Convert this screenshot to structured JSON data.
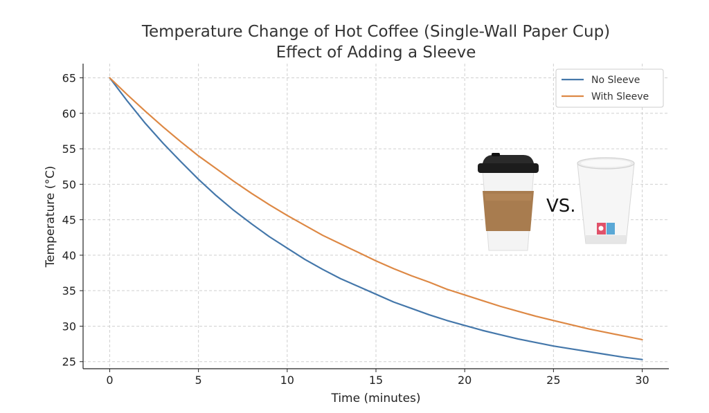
{
  "chart_data": {
    "type": "line",
    "title": "Temperature Change of Hot Coffee (Single-Wall Paper Cup)",
    "subtitle": "Effect of Adding a Sleeve",
    "xlabel": "Time (minutes)",
    "ylabel": "Temperature (°C)",
    "xlim": [
      -1.5,
      31.5
    ],
    "ylim": [
      24,
      67
    ],
    "xticks": [
      0,
      5,
      10,
      15,
      20,
      25,
      30
    ],
    "yticks": [
      25,
      30,
      35,
      40,
      45,
      50,
      55,
      60,
      65
    ],
    "grid": true,
    "legend_position": "top-right",
    "x": [
      0,
      1,
      2,
      3,
      4,
      5,
      6,
      7,
      8,
      9,
      10,
      11,
      12,
      13,
      14,
      15,
      16,
      17,
      18,
      19,
      20,
      21,
      22,
      23,
      24,
      25,
      26,
      27,
      28,
      29,
      30
    ],
    "series": [
      {
        "name": "No Sleeve",
        "color": "#4477aa",
        "values": [
          65.0,
          61.7,
          58.6,
          55.8,
          53.2,
          50.7,
          48.4,
          46.3,
          44.4,
          42.6,
          41.0,
          39.4,
          38.0,
          36.7,
          35.6,
          34.5,
          33.4,
          32.5,
          31.6,
          30.8,
          30.1,
          29.4,
          28.8,
          28.2,
          27.7,
          27.2,
          26.8,
          26.4,
          26.0,
          25.6,
          25.3
        ]
      },
      {
        "name": "With Sleeve",
        "color": "#dd8844",
        "values": [
          65.0,
          62.6,
          60.3,
          58.1,
          56.0,
          54.0,
          52.2,
          50.4,
          48.7,
          47.1,
          45.6,
          44.2,
          42.8,
          41.6,
          40.4,
          39.2,
          38.1,
          37.1,
          36.2,
          35.2,
          34.4,
          33.6,
          32.8,
          32.1,
          31.4,
          30.8,
          30.2,
          29.6,
          29.1,
          28.6,
          28.1
        ]
      }
    ],
    "annotations": [
      "VS."
    ]
  },
  "colors": {
    "sleeve": "#a87c4f",
    "lid": "#1a1a1a",
    "cup": "#f2f2f2"
  },
  "icons": [
    "coffee-cup-with-sleeve-icon",
    "paper-cup-icon"
  ]
}
